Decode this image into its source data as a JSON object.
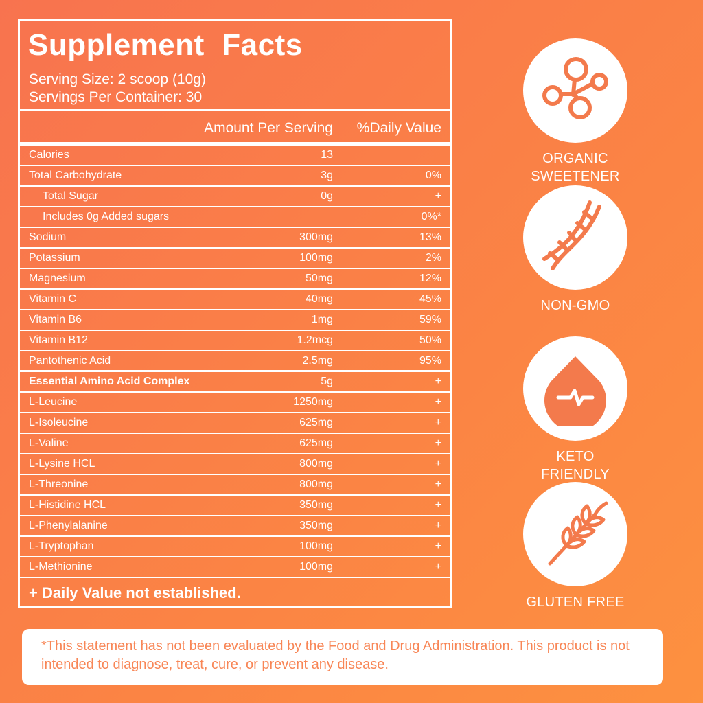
{
  "facts": {
    "title": "Supplement  Facts",
    "serving_size": "Serving Size: 2 scoop (10g)",
    "servings_per_container": "Servings Per Container: 30",
    "header_amount": "Amount Per Serving",
    "header_dv": "%Daily Value",
    "rows": [
      {
        "name": "Calories",
        "amount": "13",
        "dv": ""
      },
      {
        "name": "Total Carbohydrate",
        "amount": "3g",
        "dv": "0%"
      },
      {
        "name": "Total Sugar",
        "amount": "0g",
        "dv": "+"
      },
      {
        "name": "Includes 0g Added sugars",
        "amount": "",
        "dv": "0%*"
      },
      {
        "name": "Sodium",
        "amount": "300mg",
        "dv": "13%"
      },
      {
        "name": "Potassium",
        "amount": "100mg",
        "dv": "2%"
      },
      {
        "name": "Magnesium",
        "amount": "50mg",
        "dv": "12%"
      },
      {
        "name": "Vitamin C",
        "amount": "40mg",
        "dv": "45%"
      },
      {
        "name": "Vitamin B6",
        "amount": "1mg",
        "dv": "59%"
      },
      {
        "name": "Vitamin B12",
        "amount": "1.2mcg",
        "dv": "50%"
      },
      {
        "name": "Pantothenic Acid",
        "amount": "2.5mg",
        "dv": "95%"
      },
      {
        "name": "Essential Amino Acid Complex",
        "amount": "5g",
        "dv": "+"
      },
      {
        "name": "L-Leucine",
        "amount": "1250mg",
        "dv": "+"
      },
      {
        "name": "L-Isoleucine",
        "amount": "625mg",
        "dv": "+"
      },
      {
        "name": "L-Valine",
        "amount": "625mg",
        "dv": "+"
      },
      {
        "name": "L-Lysine HCL",
        "amount": "800mg",
        "dv": "+"
      },
      {
        "name": "L-Threonine",
        "amount": "800mg",
        "dv": "+"
      },
      {
        "name": "L-Histidine HCL",
        "amount": "350mg",
        "dv": "+"
      },
      {
        "name": "L-Phenylalanine",
        "amount": "350mg",
        "dv": "+"
      },
      {
        "name": "L-Tryptophan",
        "amount": "100mg",
        "dv": "+"
      },
      {
        "name": "L-Methionine",
        "amount": "100mg",
        "dv": "+"
      }
    ],
    "footnote": "+ Daily Value not established."
  },
  "badges": [
    {
      "icon": "molecule-icon",
      "label": "ORGANIC\nSWEETENER"
    },
    {
      "icon": "dna-icon",
      "label": "NON-GMO"
    },
    {
      "icon": "drop-pulse-icon",
      "label": "KETO FRIENDLY"
    },
    {
      "icon": "wheat-icon",
      "label": "GLUTEN FREE"
    }
  ],
  "disclaimer": "*This statement has not been evaluated by the Food and Drug Administration. This product is not intended to diagnose, treat, cure, or prevent any disease.",
  "colors": {
    "background": "#fb7e48",
    "accent": "#f88656",
    "panel": "#ffffff"
  }
}
